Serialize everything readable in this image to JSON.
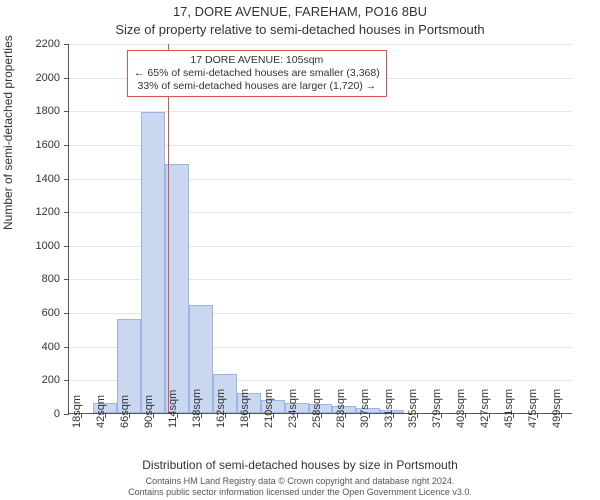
{
  "title": "17, DORE AVENUE, FAREHAM, PO16 8BU",
  "subtitle": "Size of property relative to semi-detached houses in Portsmouth",
  "xlabel": "Distribution of semi-detached houses by size in Portsmouth",
  "ylabel": "Number of semi-detached properties",
  "footer": {
    "line1": "Contains HM Land Registry data © Crown copyright and database right 2024.",
    "line2": "Contains public sector information licensed under the Open Government Licence v3.0."
  },
  "chart": {
    "type": "histogram",
    "ylim": [
      0,
      2200
    ],
    "ytick_step": 200,
    "background_color": "#ffffff",
    "grid_color": "#e6e6e6",
    "axis_color": "#555555",
    "bar_fill": "#c9d7f1",
    "bar_border": "#9eb5e0",
    "refline_color": "#d9534f",
    "refline_x_value": 105,
    "title_fontsize": 13,
    "label_fontsize": 12,
    "tick_fontsize": 11,
    "x_tick_labels": [
      "18sqm",
      "42sqm",
      "66sqm",
      "90sqm",
      "114sqm",
      "138sqm",
      "162sqm",
      "186sqm",
      "210sqm",
      "234sqm",
      "258sqm",
      "283sqm",
      "307sqm",
      "331sqm",
      "355sqm",
      "379sqm",
      "403sqm",
      "427sqm",
      "451sqm",
      "475sqm",
      "499sqm"
    ],
    "x_tick_values": [
      18,
      42,
      66,
      90,
      114,
      138,
      162,
      186,
      210,
      234,
      258,
      283,
      307,
      331,
      355,
      379,
      403,
      427,
      451,
      475,
      499
    ],
    "x_range": [
      6,
      511
    ],
    "bars": [
      {
        "x0": 6,
        "x1": 30,
        "value": 0
      },
      {
        "x0": 30,
        "x1": 54,
        "value": 60
      },
      {
        "x0": 54,
        "x1": 78,
        "value": 560
      },
      {
        "x0": 78,
        "x1": 102,
        "value": 1790
      },
      {
        "x0": 102,
        "x1": 126,
        "value": 1480
      },
      {
        "x0": 126,
        "x1": 150,
        "value": 640
      },
      {
        "x0": 150,
        "x1": 174,
        "value": 230
      },
      {
        "x0": 174,
        "x1": 198,
        "value": 120
      },
      {
        "x0": 198,
        "x1": 222,
        "value": 75
      },
      {
        "x0": 222,
        "x1": 246,
        "value": 60
      },
      {
        "x0": 246,
        "x1": 270,
        "value": 55
      },
      {
        "x0": 270,
        "x1": 294,
        "value": 40
      },
      {
        "x0": 294,
        "x1": 318,
        "value": 30
      },
      {
        "x0": 318,
        "x1": 342,
        "value": 20
      },
      {
        "x0": 342,
        "x1": 366,
        "value": 0
      },
      {
        "x0": 366,
        "x1": 390,
        "value": 0
      },
      {
        "x0": 390,
        "x1": 414,
        "value": 0
      },
      {
        "x0": 414,
        "x1": 438,
        "value": 0
      },
      {
        "x0": 438,
        "x1": 462,
        "value": 0
      },
      {
        "x0": 462,
        "x1": 486,
        "value": 0
      },
      {
        "x0": 486,
        "x1": 510,
        "value": 0
      }
    ]
  },
  "annotation": {
    "line1": "17 DORE AVENUE: 105sqm",
    "line2": "← 65% of semi-detached houses are smaller (3,368)",
    "line3": "33% of semi-detached houses are larger (1,720) →",
    "border_color": "#d9534f",
    "background_color": "#ffffff",
    "fontsize": 10.5
  }
}
